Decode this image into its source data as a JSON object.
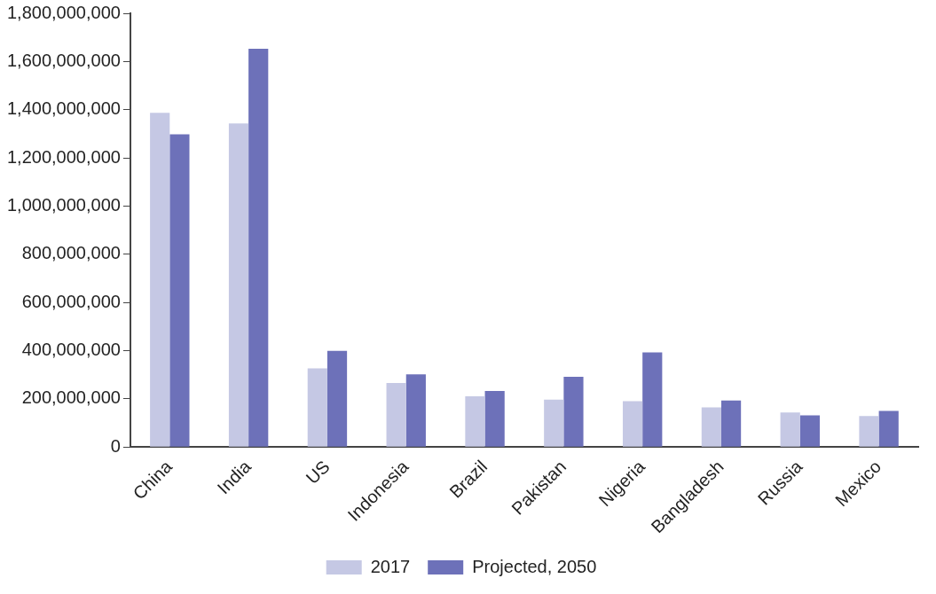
{
  "chart_data": {
    "type": "bar",
    "categories": [
      "China",
      "India",
      "US",
      "Indonesia",
      "Brazil",
      "Pakistan",
      "Nigeria",
      "Bangladesh",
      "Russia",
      "Mexico"
    ],
    "series": [
      {
        "name": "2017",
        "color": "#c5c8e4",
        "values": [
          1387000000,
          1343000000,
          327000000,
          266000000,
          211000000,
          197000000,
          191000000,
          165000000,
          144000000,
          129000000
        ]
      },
      {
        "name": "Projected, 2050",
        "color": "#6d71b9",
        "values": [
          1298000000,
          1653000000,
          399000000,
          302000000,
          233000000,
          292000000,
          393000000,
          193000000,
          132000000,
          150000000
        ]
      }
    ],
    "ylim": [
      0,
      1800000000
    ],
    "yticks": [
      {
        "value": 0,
        "label": "0"
      },
      {
        "value": 200000000,
        "label": "200,000,000"
      },
      {
        "value": 400000000,
        "label": "400,000,000"
      },
      {
        "value": 600000000,
        "label": "600,000,000"
      },
      {
        "value": 800000000,
        "label": "800,000,000"
      },
      {
        "value": 1000000000,
        "label": "1,000,000,000"
      },
      {
        "value": 1200000000,
        "label": "1,200,000,000"
      },
      {
        "value": 1400000000,
        "label": "1,400,000,000"
      },
      {
        "value": 1600000000,
        "label": "1,600,000,000"
      },
      {
        "value": 1800000000,
        "label": "1,800,000,000"
      }
    ],
    "grid": false,
    "legend": "bottom"
  }
}
